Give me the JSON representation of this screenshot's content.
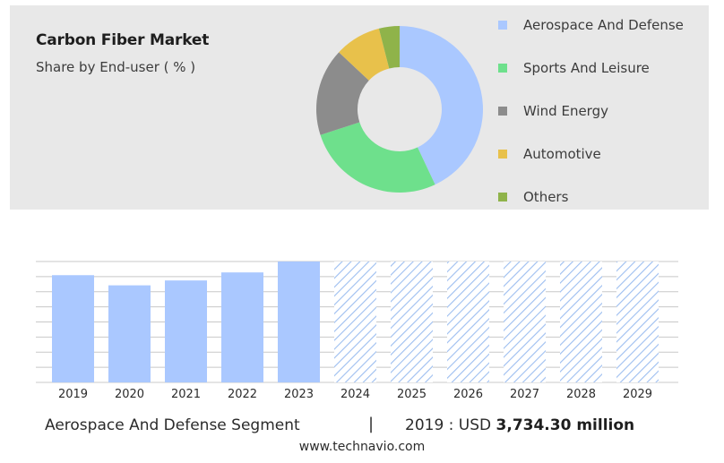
{
  "header": {
    "title": "Carbon Fiber Market",
    "subtitle": "Share by End-user ( % )"
  },
  "colors": {
    "panel_bg": "#e8e8e8",
    "bar_actual": "#aac8ff",
    "bar_forecast_hatch": "#9dbef0",
    "grid": "#c8c8c8"
  },
  "legend": {
    "items": [
      {
        "label": "Aerospace And Defense",
        "color": "#aac8ff"
      },
      {
        "label": "Sports And Leisure",
        "color": "#6ee08c"
      },
      {
        "label": "Wind Energy",
        "color": "#8c8c8c"
      },
      {
        "label": "Automotive",
        "color": "#e8c14b"
      },
      {
        "label": "Others",
        "color": "#8fb34a"
      }
    ]
  },
  "footer": {
    "segment": "Aerospace And Defense Segment",
    "separator": "|",
    "prefix": "2019 : USD",
    "value": "3,734.30 million",
    "website": "www.technavio.com"
  },
  "chart_data": [
    {
      "type": "pie",
      "categories": [
        "Aerospace And Defense",
        "Sports And Leisure",
        "Wind Energy",
        "Automotive",
        "Others"
      ],
      "values": [
        43,
        27,
        17,
        9,
        4
      ],
      "donut": true,
      "legend": "right"
    },
    {
      "type": "bar",
      "categories": [
        "2019",
        "2020",
        "2021",
        "2022",
        "2023",
        "2024",
        "2025",
        "2026",
        "2027",
        "2028",
        "2029"
      ],
      "values": [
        3734.3,
        3380,
        3550,
        3830,
        4210,
        4210,
        4210,
        4210,
        4210,
        4210,
        4210
      ],
      "forecast_from": "2024",
      "ylim": [
        0,
        4210
      ],
      "grid": true
    }
  ]
}
